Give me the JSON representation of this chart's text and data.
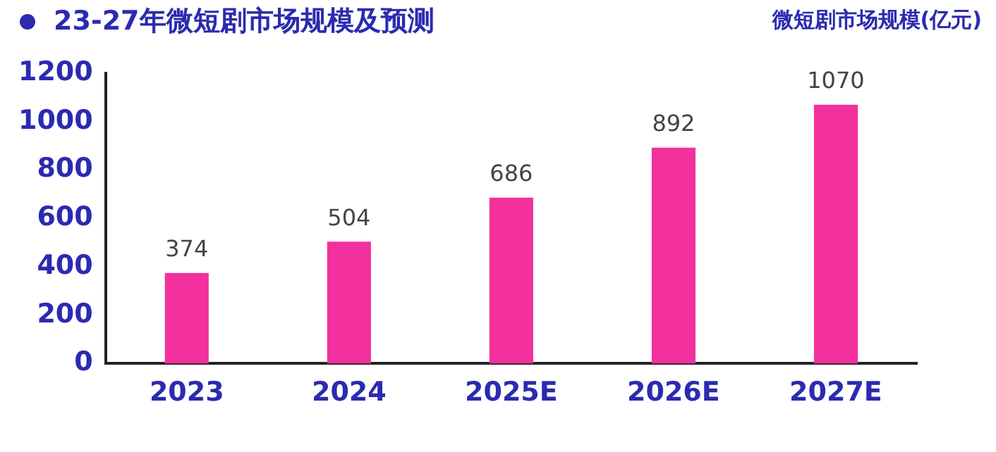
{
  "chart_data": {
    "type": "bar",
    "title": "23-27年微短剧市场规模及预测",
    "ylabel": "微短剧市场规模(亿元)",
    "categories": [
      "2023",
      "2024",
      "2025E",
      "2026E",
      "2027E"
    ],
    "values": [
      374,
      504,
      686,
      892,
      1070
    ],
    "color": "#f2309e",
    "ylim": [
      0,
      1200
    ],
    "yticks": [
      0,
      200,
      400,
      600,
      800,
      1000,
      1200
    ],
    "grid": false,
    "data_labels": true
  }
}
